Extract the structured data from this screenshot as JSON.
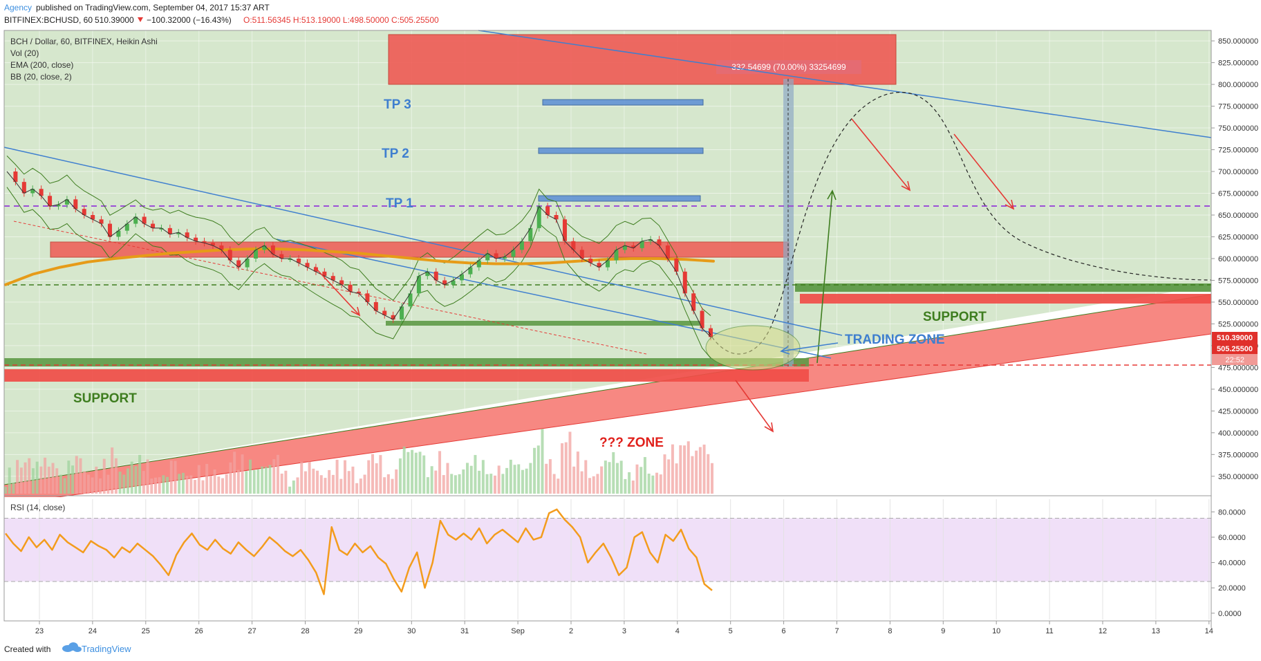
{
  "header": {
    "author": "Agency",
    "published": "published on TradingView.com, September 04, 2017 15:37 ART",
    "symbol": "BITFINEX:BCHUSD, 60",
    "last": "510.39000",
    "change": "−100.32000 (−16.43%)",
    "ohlc": "O:511.56345 H:513.19000 L:498.50000 C:505.25500"
  },
  "legend": {
    "title": "BCH / Dollar, 60, BITFINEX, Heikin Ashi",
    "vol": "Vol (20)",
    "ema": "EMA (200, close)",
    "bb": "BB (20, close, 2)",
    "rsi": "RSI (14, close)"
  },
  "footer": {
    "created_with": "Created with",
    "brand": "TradingView"
  },
  "colors": {
    "up": "#4caf50",
    "down": "#e53935",
    "ema": "#e69b18",
    "trend": "#3f7fcf",
    "zone_red": "#f0635a",
    "zone_green": "#5e9a47",
    "rsi": "#f39c1d",
    "purple": "#9b4fd6",
    "support_text": "#3e7d1f",
    "zone_text": "#e0201b"
  },
  "chart_data": [
    {
      "type": "line",
      "title": "BCH / Dollar, 60, BITFINEX, Heikin Ashi",
      "x_ticks": [
        "23",
        "24",
        "25",
        "26",
        "27",
        "28",
        "29",
        "30",
        "31",
        "Sep",
        "2",
        "3",
        "4",
        "5",
        "6",
        "7",
        "8",
        "9",
        "10",
        "11",
        "12",
        "13",
        "14"
      ],
      "y_ticks": [
        850,
        825,
        800,
        775,
        750,
        725,
        700,
        675,
        650,
        625,
        600,
        575,
        550,
        525,
        500,
        475,
        450,
        425,
        400,
        375,
        350
      ],
      "ylim": [
        330,
        862
      ],
      "price_tags": [
        "510.39000",
        "505.25500",
        "22:52"
      ],
      "series": [
        {
          "values": [
            700,
            688,
            675,
            680,
            672,
            660,
            662,
            668,
            657,
            650,
            645,
            640,
            625,
            632,
            640,
            648,
            640,
            635,
            635,
            628,
            630,
            624,
            620,
            618,
            615,
            610,
            598,
            590,
            600,
            610,
            615,
            605,
            600,
            600,
            595,
            590,
            585,
            580,
            575,
            570,
            562,
            560,
            550,
            540,
            535,
            530,
            545,
            560,
            580,
            585,
            575,
            570,
            575,
            582,
            590,
            598,
            606,
            600,
            602,
            610,
            620,
            635,
            660,
            650,
            645,
            620,
            610,
            600,
            595,
            590,
            598,
            610,
            615,
            612,
            620,
            622,
            615,
            600,
            585,
            560,
            540,
            520,
            510
          ]
        }
      ],
      "ema_values": [
        570,
        582,
        590,
        596,
        600,
        603,
        606,
        608,
        610,
        611,
        611,
        610,
        608,
        606,
        603,
        600,
        597,
        595,
        594,
        594,
        595,
        597,
        599,
        600,
        600,
        599,
        597
      ],
      "annotations": {
        "tp": [
          "TP 3",
          "TP 2",
          "TP 1"
        ],
        "measure_label": "332.54699 (70.00%) 33254699",
        "support_left": "SUPPORT",
        "support_right": "SUPPORT",
        "trading_zone": "TRADING ZONE",
        "unknown_zone": "??? ZONE"
      }
    },
    {
      "type": "line",
      "title": "RSI (14, close)",
      "y_ticks": [
        "80.0000",
        "60.0000",
        "40.0000",
        "20.0000",
        "0.0000"
      ],
      "ylim": [
        -5,
        90
      ],
      "bands": [
        25,
        75
      ],
      "values": [
        63,
        55,
        49,
        60,
        52,
        58,
        50,
        62,
        56,
        52,
        48,
        57,
        53,
        50,
        44,
        52,
        48,
        55,
        50,
        45,
        38,
        30,
        46,
        56,
        63,
        54,
        50,
        58,
        51,
        47,
        56,
        50,
        45,
        52,
        60,
        55,
        49,
        45,
        50,
        42,
        32,
        15,
        68,
        50,
        46,
        55,
        48,
        53,
        44,
        39,
        27,
        17,
        36,
        48,
        20,
        40,
        73,
        62,
        58,
        63,
        58,
        67,
        55,
        62,
        66,
        61,
        56,
        67,
        58,
        60,
        79,
        82,
        74,
        68,
        60,
        40,
        48,
        55,
        44,
        30,
        36,
        60,
        64,
        48,
        40,
        62,
        57,
        66,
        51,
        44,
        23,
        18
      ]
    }
  ]
}
